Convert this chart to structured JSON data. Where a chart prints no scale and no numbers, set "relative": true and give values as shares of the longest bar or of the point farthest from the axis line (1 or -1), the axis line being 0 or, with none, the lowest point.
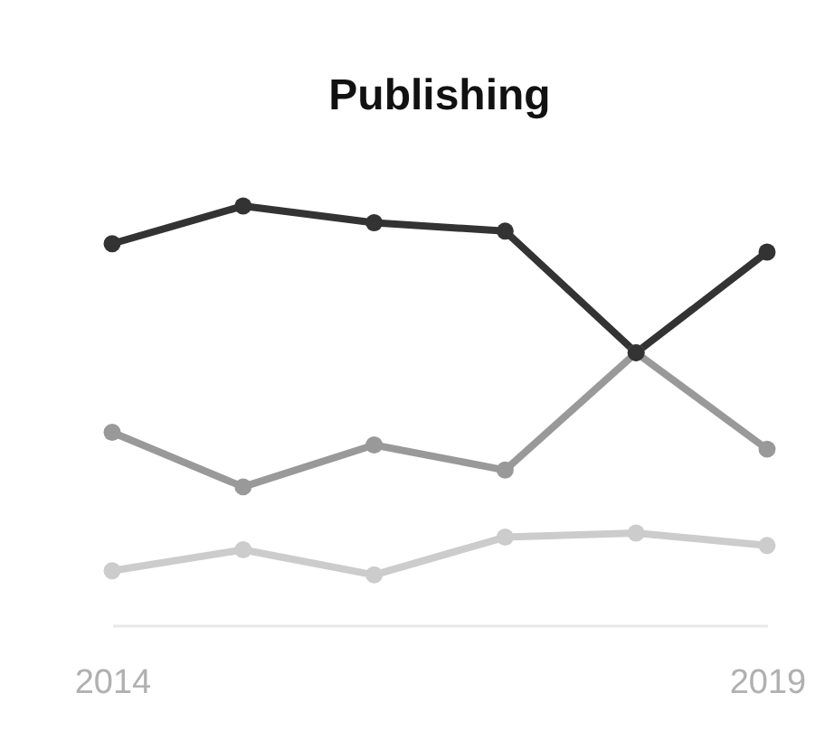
{
  "chart_data": {
    "type": "line",
    "title": "Publishing",
    "relative": true,
    "marker": "circle",
    "line_style": "solid",
    "grid": false,
    "legend": false,
    "categories": [
      "2014",
      null,
      null,
      null,
      null,
      "2019"
    ],
    "series": [
      {
        "color": "#333333",
        "values": [
          0.91,
          1,
          0.96,
          0.94,
          0.65,
          0.89
        ]
      },
      {
        "color": "#999999",
        "values": [
          0.46,
          0.33,
          0.43,
          0.37,
          0.65,
          0.42
        ]
      },
      {
        "color": "#cccccc",
        "values": [
          0.13,
          0.18,
          0.12,
          0.21,
          0.22,
          0.19
        ]
      }
    ]
  }
}
